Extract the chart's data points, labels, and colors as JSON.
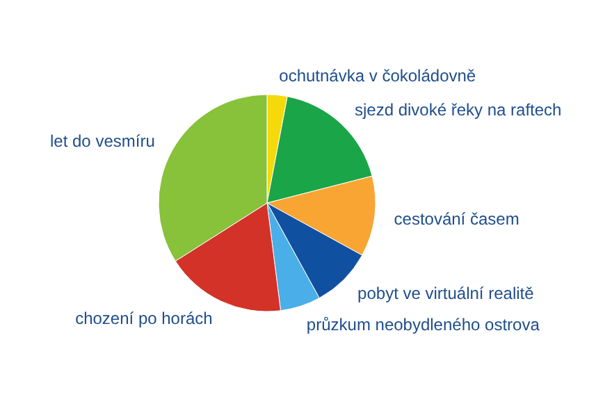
{
  "chart_data": {
    "type": "pie",
    "categories": [
      "ochutnávka v čokoládovně",
      "sjezd divoké řeky na raftech",
      "cestování časem",
      "pobyt ve virtuální realitě",
      "průzkum neobydleného ostrova",
      "chození po horách",
      "let do vesmíru"
    ],
    "values": [
      3,
      18,
      12,
      9,
      6,
      18,
      34
    ],
    "colors": [
      "#f5d90a",
      "#1aa548",
      "#f9a533",
      "#1050a0",
      "#4aaee8",
      "#d33228",
      "#88c13a"
    ]
  }
}
